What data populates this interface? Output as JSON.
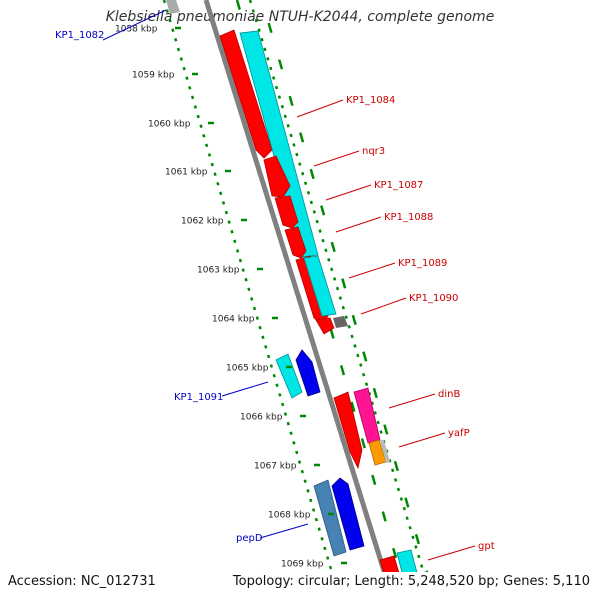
{
  "title": "Klebsiella pneumoniae NTUH-K2044, complete genome",
  "footer": {
    "accession": "Accession: NC_012731",
    "summary": "Topology: circular; Length: 5,248,520 bp; Genes: 5,110"
  },
  "colors": {
    "forward_label": "#cc0000",
    "reverse_label": "#0000cc",
    "ruler": "#008800",
    "backbone": "#808080"
  },
  "ruler_ticks": [
    "1058 kbp",
    "1059 kbp",
    "1060 kbp",
    "1061 kbp",
    "1062 kbp",
    "1063 kbp",
    "1064 kbp",
    "1065 kbp",
    "1066 kbp",
    "1067 kbp",
    "1068 kbp",
    "1069 kbp"
  ],
  "gene_labels": [
    {
      "text": "KP1_1082",
      "strand": "reverse"
    },
    {
      "text": "KP1_1084",
      "strand": "forward"
    },
    {
      "text": "nqr3",
      "strand": "forward"
    },
    {
      "text": "KP1_1087",
      "strand": "forward"
    },
    {
      "text": "KP1_1088",
      "strand": "forward"
    },
    {
      "text": "KP1_1089",
      "strand": "forward"
    },
    {
      "text": "KP1_1090",
      "strand": "forward"
    },
    {
      "text": "KP1_1091",
      "strand": "reverse"
    },
    {
      "text": "dinB",
      "strand": "forward"
    },
    {
      "text": "yafP",
      "strand": "forward"
    },
    {
      "text": "pepD",
      "strand": "reverse"
    },
    {
      "text": "gpt",
      "strand": "forward"
    }
  ]
}
